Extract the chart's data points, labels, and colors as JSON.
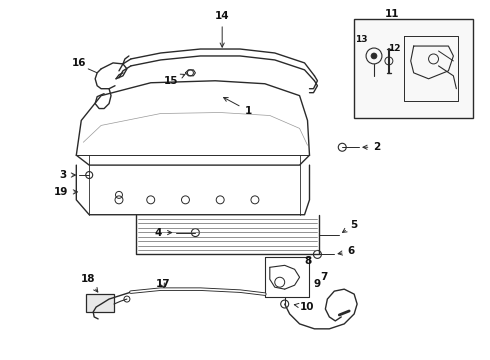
{
  "bg_color": "#ffffff",
  "line_color": "#2a2a2a",
  "label_color": "#111111",
  "fig_width": 4.9,
  "fig_height": 3.6,
  "dpi": 100,
  "fs": 7.5,
  "lw": 1.0
}
